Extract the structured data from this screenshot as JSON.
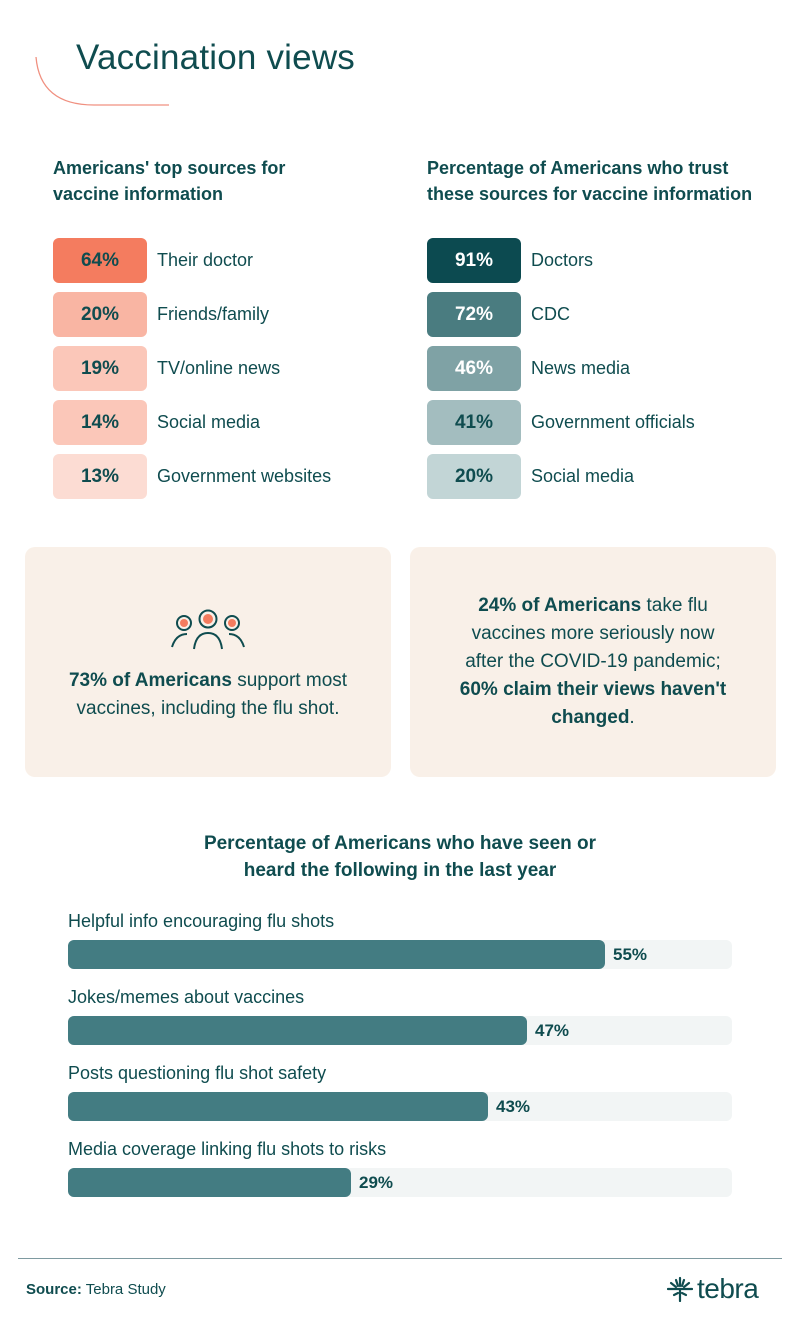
{
  "header": {
    "title": "Vaccination views"
  },
  "top_sources": {
    "title": "Americans' top sources for vaccine information",
    "items": [
      {
        "value": "64%",
        "label": "Their doctor",
        "color": "#f47c5f"
      },
      {
        "value": "20%",
        "label": "Friends/family",
        "color": "#f9b5a3"
      },
      {
        "value": "19%",
        "label": "TV/online news",
        "color": "#fbc7b9"
      },
      {
        "value": "14%",
        "label": "Social media",
        "color": "#fbc7b9"
      },
      {
        "value": "13%",
        "label": "Government websites",
        "color": "#fcdcd3"
      }
    ]
  },
  "trust_sources": {
    "title": "Percentage of Americans who trust these sources for vaccine information",
    "items": [
      {
        "value": "91%",
        "label": "Doctors",
        "color": "#0c4a50",
        "text_color": "#ffffff"
      },
      {
        "value": "72%",
        "label": "CDC",
        "color": "#4a7c80",
        "text_color": "#ffffff"
      },
      {
        "value": "46%",
        "label": "News media",
        "color": "#7fa2a5",
        "text_color": "#ffffff"
      },
      {
        "value": "41%",
        "label": "Government officials",
        "color": "#a3bdbf",
        "text_color": "#0f4c4f"
      },
      {
        "value": "20%",
        "label": "Social media",
        "color": "#c2d5d6",
        "text_color": "#0f4c4f"
      }
    ]
  },
  "cards": {
    "left": {
      "icon": "people-group-icon",
      "bold": "73% of Americans",
      "text": " support most vaccines, including the flu shot."
    },
    "right": {
      "bold1": "24% of Americans",
      "text1": " take flu vaccines more seriously now after the COVID-19 pandemic; ",
      "bold2": "60% claim their views haven't changed",
      "text2": "."
    }
  },
  "seen_heard": {
    "title_line1": "Percentage of Americans who have seen or",
    "title_line2": "heard the following in the last year"
  },
  "chart_data": [
    {
      "type": "table",
      "title": "Americans' top sources for vaccine information",
      "categories": [
        "Their doctor",
        "Friends/family",
        "TV/online news",
        "Social media",
        "Government websites"
      ],
      "values": [
        64,
        20,
        19,
        14,
        13
      ],
      "unit": "%"
    },
    {
      "type": "table",
      "title": "Percentage of Americans who trust these sources for vaccine information",
      "categories": [
        "Doctors",
        "CDC",
        "News media",
        "Government officials",
        "Social media"
      ],
      "values": [
        91,
        72,
        46,
        41,
        20
      ],
      "unit": "%"
    },
    {
      "type": "bar",
      "orientation": "horizontal",
      "title": "Percentage of Americans who have seen or heard the following in the last year",
      "categories": [
        "Helpful info encouraging flu shots",
        "Jokes/memes about vaccines",
        "Posts questioning flu shot safety",
        "Media coverage linking flu shots to risks"
      ],
      "values": [
        55,
        47,
        43,
        29
      ],
      "labels": [
        "55%",
        "47%",
        "43%",
        "29%"
      ],
      "xlabel": "",
      "ylabel": "",
      "xlim": [
        0,
        68
      ],
      "bar_color": "#437c82",
      "track_color": "#f2f5f5"
    }
  ],
  "footer": {
    "source_label": "Source:",
    "source_value": " Tebra Study",
    "logo_text": "tebra"
  }
}
